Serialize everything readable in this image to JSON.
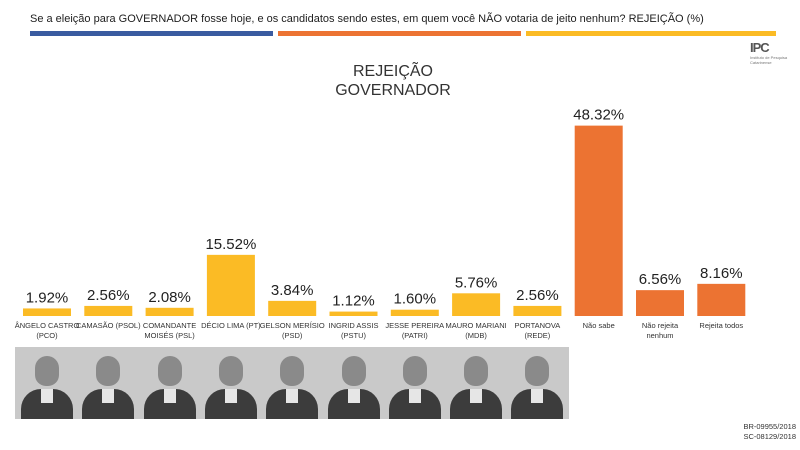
{
  "question": "Se a eleição para GOVERNADOR fosse hoje, e os candidatos sendo estes, em quem você NÃO votaria de jeito nenhum? REJEIÇÃO  (%)",
  "colors": {
    "candidate": "#fbbb25",
    "other": "#ec7332",
    "rule_blue": "#3a5ba0",
    "rule_orange": "#ec7332",
    "rule_yellow": "#fbbb25"
  },
  "logo": {
    "mark": "IPC",
    "sub": "Instituto de Pesquisa Catarinense"
  },
  "chart_data": {
    "type": "bar",
    "title_line1": "REJEIÇÃO",
    "title_line2": "GOVERNADOR",
    "xlabel": "",
    "ylabel": "",
    "ylim": [
      0,
      50
    ],
    "grid": false,
    "categories": [
      "ÂNGELO CASTRO (PCO)",
      "CAMASÃO (PSOL)",
      "COMANDANTE MOISÉS (PSL)",
      "DÉCIO LIMA (PT)",
      "GELSON MERÍSIO (PSD)",
      "INGRID ASSIS (PSTU)",
      "JESSE PEREIRA (PATRI)",
      "MAURO MARIANI (MDB)",
      "PORTANOVA (REDE)",
      "Não sabe",
      "Não rejeita nenhum",
      "Rejeita todos"
    ],
    "label_lines": [
      [
        "ÂNGELO CASTRO",
        "(PCO)"
      ],
      [
        "CAMASÃO (PSOL)"
      ],
      [
        "COMANDANTE",
        "MOISÉS (PSL)"
      ],
      [
        "DÉCIO LIMA (PT)"
      ],
      [
        "GELSON MERÍSIO",
        "(PSD)"
      ],
      [
        "INGRID ASSIS",
        "(PSTU)"
      ],
      [
        "JESSE PEREIRA",
        "(PATRI)"
      ],
      [
        "MAURO MARIANI",
        "(MDB)"
      ],
      [
        "PORTANOVA",
        "(REDE)"
      ],
      [
        "Não sabe"
      ],
      [
        "Não rejeita",
        "nenhum"
      ],
      [
        "Rejeita todos"
      ]
    ],
    "values": [
      1.92,
      2.56,
      2.08,
      15.52,
      3.84,
      1.12,
      1.6,
      5.76,
      2.56,
      48.32,
      6.56,
      8.16
    ],
    "value_labels": [
      "1.92%",
      "2.56%",
      "2.08%",
      "15.52%",
      "3.84%",
      "1.12%",
      "1.60%",
      "5.76%",
      "2.56%",
      "48.32%",
      "6.56%",
      "8.16%"
    ],
    "bar_colors": [
      "candidate",
      "candidate",
      "candidate",
      "candidate",
      "candidate",
      "candidate",
      "candidate",
      "candidate",
      "candidate",
      "other",
      "other",
      "other"
    ]
  },
  "photos": [
    "angelo-castro-photo",
    "camasao-photo",
    "comandante-moises-photo",
    "decio-lima-photo",
    "gelson-merisio-photo",
    "ingrid-assis-photo",
    "jesse-pereira-photo",
    "mauro-mariani-photo",
    "portanova-photo"
  ],
  "footer": {
    "line1": "BR-09955/2018",
    "line2": "SC-08129/2018"
  }
}
